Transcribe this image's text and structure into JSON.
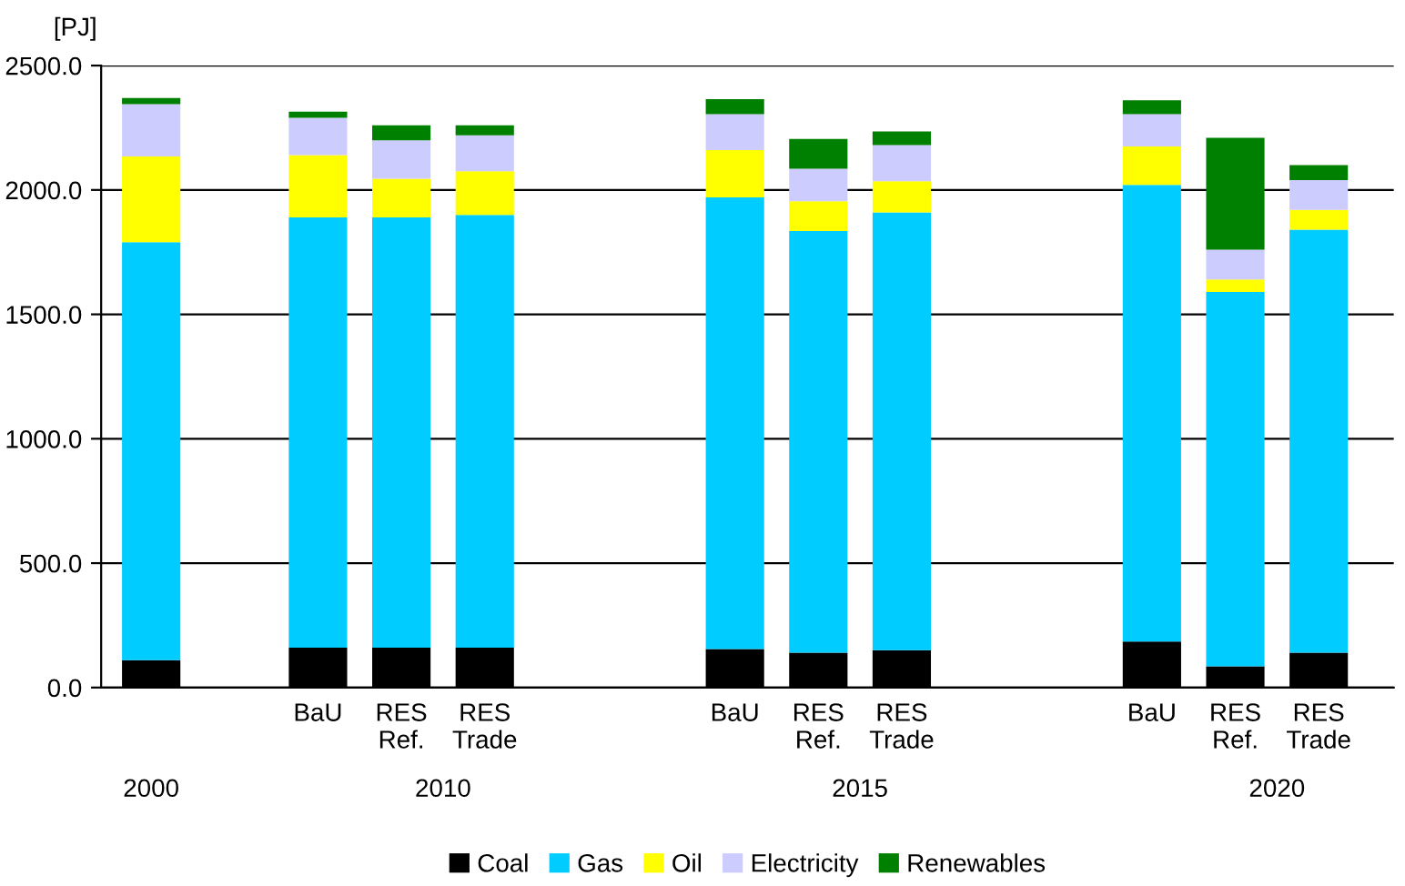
{
  "chart_data": {
    "type": "bar",
    "stacked": true,
    "ylabel": "[PJ]",
    "categories": [
      null,
      null,
      "BaU",
      "RES\nRef.",
      "RES\nTrade",
      null,
      null,
      "BaU",
      "RES\nRef.",
      "RES\nTrade",
      null,
      null,
      "BaU",
      "RES\nRef.",
      "RES\nTrade"
    ],
    "series": [
      {
        "name": "Coal",
        "color": "#000000",
        "values": [
          110,
          null,
          160,
          160,
          160,
          null,
          null,
          155,
          140,
          150,
          null,
          null,
          185,
          85,
          140
        ]
      },
      {
        "name": "Gas",
        "color": "#00ccff",
        "values": [
          1680,
          null,
          1730,
          1730,
          1740,
          null,
          null,
          1815,
          1695,
          1760,
          null,
          null,
          1835,
          1505,
          1700
        ]
      },
      {
        "name": "Oil",
        "color": "#ffff00",
        "values": [
          345,
          null,
          250,
          155,
          175,
          null,
          null,
          190,
          120,
          125,
          null,
          null,
          155,
          50,
          80
        ]
      },
      {
        "name": "Electricity",
        "color": "#ccccff",
        "values": [
          210,
          null,
          150,
          155,
          145,
          null,
          null,
          145,
          130,
          145,
          null,
          null,
          130,
          120,
          120
        ]
      },
      {
        "name": "Renewables",
        "color": "#008000",
        "values": [
          25,
          null,
          25,
          60,
          40,
          null,
          null,
          60,
          120,
          55,
          null,
          null,
          55,
          450,
          60
        ]
      }
    ],
    "annotations": [
      "2000",
      "2010",
      "2015",
      "2020"
    ],
    "ylim": [
      0,
      2500
    ],
    "yticks": [
      {
        "value": 0,
        "label": "0.0"
      },
      {
        "value": 500,
        "label": "500.0"
      },
      {
        "value": 1000,
        "label": "1000.0"
      },
      {
        "value": 1500,
        "label": "1500.0"
      },
      {
        "value": 2000,
        "label": "2000.0"
      },
      {
        "value": 2500,
        "label": "2500.0"
      }
    ],
    "grid": "y",
    "legend": "bottom"
  }
}
